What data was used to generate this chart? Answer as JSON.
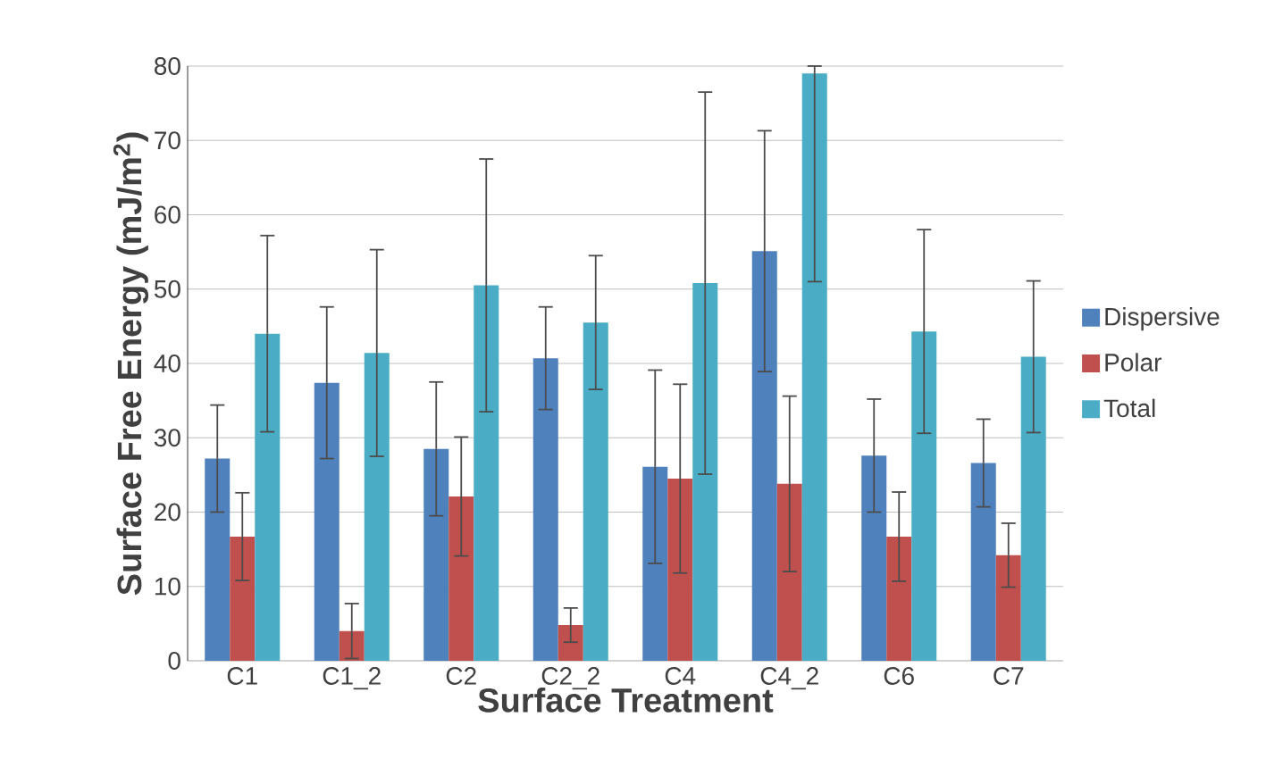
{
  "chart_data": {
    "type": "bar",
    "xlabel": "Surface Treatment",
    "ylabel": "Surface Free Energy (mJ/m$^{2}$)",
    "categories": [
      "C1",
      "C1_2",
      "C2",
      "C2_2",
      "C4",
      "C4_2",
      "C6",
      "C7"
    ],
    "series": [
      {
        "name": "Dispersive",
        "color": "#4f81bd",
        "values": [
          27.2,
          37.4,
          28.5,
          40.7,
          26.1,
          55.1,
          27.6,
          26.6
        ],
        "errors": [
          7.2,
          10.2,
          9.0,
          6.9,
          13.0,
          16.2,
          7.6,
          5.9
        ]
      },
      {
        "name": "Polar",
        "color": "#c0504d",
        "values": [
          16.7,
          4.0,
          22.1,
          4.8,
          24.5,
          23.8,
          16.7,
          14.2
        ],
        "errors": [
          5.9,
          3.7,
          8.0,
          2.3,
          12.7,
          11.8,
          6.0,
          4.3
        ]
      },
      {
        "name": "Total",
        "color": "#4bacc6",
        "values": [
          44.0,
          41.4,
          50.5,
          45.5,
          50.8,
          79.0,
          44.3,
          40.9
        ],
        "errors": [
          13.2,
          13.9,
          17.0,
          9.0,
          25.7,
          [
            51.0,
            80
          ],
          13.7,
          10.2
        ]
      }
    ],
    "ylim": [
      0,
      80
    ],
    "yticks": [
      0,
      10,
      20,
      30,
      40,
      50,
      60,
      70,
      80
    ],
    "grid": "y",
    "legend": "right"
  }
}
